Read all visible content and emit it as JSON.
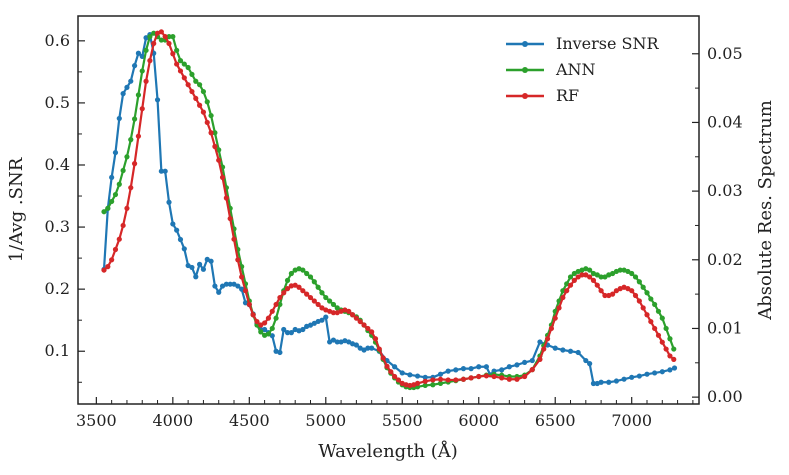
{
  "chart_data": {
    "type": "line",
    "title": "",
    "xlabel": "Wavelength (Å)",
    "ylabel_left": "1/Avg .SNR",
    "ylabel_right": "Absolute Res. Spectrum",
    "xlim": [
      3380,
      7440
    ],
    "ylim_left": [
      0.015,
      0.64
    ],
    "ylim_right": [
      -0.001,
      0.0555
    ],
    "x_ticks": [
      3500,
      4000,
      4500,
      5000,
      5500,
      6000,
      6500,
      7000
    ],
    "x_tick_labels": [
      "3500",
      "4000",
      "4500",
      "5000",
      "5500",
      "6000",
      "6500",
      "7000"
    ],
    "y_left_ticks": [
      0.1,
      0.2,
      0.3,
      0.4,
      0.5,
      0.6
    ],
    "y_left_tick_labels": [
      "0.1",
      "0.2",
      "0.3",
      "0.4",
      "0.5",
      "0.6"
    ],
    "y_right_ticks": [
      0.0,
      0.01,
      0.02,
      0.03,
      0.04,
      0.05
    ],
    "y_right_tick_labels": [
      "0.00",
      "0.01",
      "0.02",
      "0.03",
      "0.04",
      "0.05"
    ],
    "legend_position": "top-right",
    "series": [
      {
        "name": "Inverse SNR",
        "axis": "left",
        "color": "#1f77b4",
        "x": [
          3550,
          3575,
          3600,
          3625,
          3650,
          3675,
          3700,
          3725,
          3750,
          3775,
          3800,
          3825,
          3850,
          3875,
          3900,
          3925,
          3950,
          3975,
          4000,
          4025,
          4050,
          4075,
          4100,
          4125,
          4150,
          4175,
          4200,
          4225,
          4250,
          4275,
          4300,
          4325,
          4350,
          4375,
          4400,
          4425,
          4450,
          4475,
          4500,
          4525,
          4550,
          4575,
          4600,
          4625,
          4650,
          4675,
          4700,
          4725,
          4750,
          4775,
          4800,
          4825,
          4850,
          4875,
          4900,
          4925,
          4950,
          4975,
          5000,
          5025,
          5050,
          5075,
          5100,
          5125,
          5150,
          5175,
          5200,
          5225,
          5250,
          5275,
          5300,
          5350,
          5400,
          5450,
          5500,
          5550,
          5600,
          5650,
          5700,
          5750,
          5800,
          5850,
          5900,
          5950,
          6000,
          6050,
          6075,
          6100,
          6150,
          6200,
          6250,
          6300,
          6350,
          6400,
          6450,
          6500,
          6550,
          6600,
          6650,
          6700,
          6725,
          6750,
          6775,
          6800,
          6850,
          6900,
          6950,
          7000,
          7050,
          7100,
          7150,
          7200,
          7250,
          7280
        ],
        "values": [
          0.232,
          0.33,
          0.38,
          0.42,
          0.475,
          0.515,
          0.525,
          0.535,
          0.56,
          0.58,
          0.575,
          0.605,
          0.61,
          0.58,
          0.505,
          0.39,
          0.39,
          0.34,
          0.305,
          0.295,
          0.28,
          0.265,
          0.238,
          0.235,
          0.22,
          0.24,
          0.232,
          0.248,
          0.245,
          0.205,
          0.195,
          0.205,
          0.208,
          0.208,
          0.208,
          0.205,
          0.2,
          0.178,
          0.175,
          0.16,
          0.145,
          0.135,
          0.135,
          0.13,
          0.125,
          0.1,
          0.098,
          0.135,
          0.13,
          0.13,
          0.135,
          0.133,
          0.135,
          0.14,
          0.142,
          0.145,
          0.148,
          0.15,
          0.155,
          0.115,
          0.118,
          0.115,
          0.115,
          0.117,
          0.115,
          0.112,
          0.11,
          0.105,
          0.102,
          0.105,
          0.105,
          0.1,
          0.085,
          0.075,
          0.065,
          0.062,
          0.06,
          0.058,
          0.058,
          0.063,
          0.068,
          0.07,
          0.072,
          0.072,
          0.075,
          0.075,
          0.062,
          0.068,
          0.07,
          0.075,
          0.078,
          0.082,
          0.085,
          0.115,
          0.11,
          0.105,
          0.102,
          0.1,
          0.098,
          0.085,
          0.08,
          0.048,
          0.048,
          0.05,
          0.05,
          0.052,
          0.055,
          0.058,
          0.06,
          0.063,
          0.065,
          0.067,
          0.07,
          0.073
        ]
      },
      {
        "name": "ANN",
        "axis": "right",
        "color": "#2ca02c",
        "x": [
          3550,
          3575,
          3600,
          3625,
          3650,
          3675,
          3700,
          3725,
          3750,
          3775,
          3800,
          3825,
          3850,
          3875,
          3900,
          3925,
          3950,
          3975,
          4000,
          4025,
          4050,
          4075,
          4100,
          4125,
          4150,
          4175,
          4200,
          4225,
          4250,
          4275,
          4300,
          4325,
          4350,
          4375,
          4400,
          4425,
          4450,
          4475,
          4500,
          4525,
          4550,
          4575,
          4600,
          4625,
          4650,
          4675,
          4700,
          4725,
          4750,
          4775,
          4800,
          4825,
          4850,
          4875,
          4900,
          4925,
          4950,
          4975,
          5000,
          5025,
          5050,
          5075,
          5100,
          5125,
          5150,
          5175,
          5200,
          5225,
          5250,
          5275,
          5300,
          5325,
          5350,
          5375,
          5400,
          5425,
          5450,
          5475,
          5500,
          5525,
          5550,
          5575,
          5600,
          5650,
          5700,
          5750,
          5800,
          5850,
          5900,
          5950,
          6000,
          6050,
          6100,
          6150,
          6200,
          6250,
          6300,
          6350,
          6400,
          6425,
          6450,
          6475,
          6500,
          6525,
          6550,
          6575,
          6600,
          6625,
          6650,
          6675,
          6700,
          6725,
          6750,
          6775,
          6800,
          6825,
          6850,
          6875,
          6900,
          6925,
          6950,
          6975,
          7000,
          7025,
          7050,
          7075,
          7100,
          7125,
          7150,
          7175,
          7200,
          7225,
          7250,
          7275
        ],
        "values": [
          0.027,
          0.0275,
          0.0285,
          0.0295,
          0.031,
          0.033,
          0.035,
          0.0375,
          0.0405,
          0.044,
          0.0475,
          0.0505,
          0.0525,
          0.053,
          0.0525,
          0.052,
          0.052,
          0.0525,
          0.0525,
          0.0505,
          0.049,
          0.0485,
          0.048,
          0.047,
          0.046,
          0.0455,
          0.0445,
          0.043,
          0.041,
          0.0385,
          0.036,
          0.0335,
          0.0305,
          0.0275,
          0.0245,
          0.0215,
          0.019,
          0.0165,
          0.014,
          0.012,
          0.0105,
          0.0095,
          0.009,
          0.0092,
          0.01,
          0.0115,
          0.0135,
          0.0155,
          0.017,
          0.018,
          0.0185,
          0.0187,
          0.0185,
          0.018,
          0.0175,
          0.0168,
          0.016,
          0.0152,
          0.0145,
          0.014,
          0.0135,
          0.013,
          0.0127,
          0.0125,
          0.0123,
          0.012,
          0.0117,
          0.0112,
          0.0105,
          0.0097,
          0.009,
          0.008,
          0.0068,
          0.0055,
          0.0043,
          0.0035,
          0.0028,
          0.0022,
          0.0018,
          0.0015,
          0.0014,
          0.0014,
          0.0015,
          0.0017,
          0.0018,
          0.002,
          0.0022,
          0.0024,
          0.0026,
          0.0028,
          0.003,
          0.0032,
          0.0033,
          0.0032,
          0.003,
          0.003,
          0.0032,
          0.004,
          0.006,
          0.0075,
          0.009,
          0.0105,
          0.0125,
          0.014,
          0.0155,
          0.0165,
          0.0175,
          0.018,
          0.0183,
          0.0185,
          0.0187,
          0.0185,
          0.018,
          0.0178,
          0.0175,
          0.0175,
          0.0178,
          0.018,
          0.0183,
          0.0185,
          0.0185,
          0.0183,
          0.018,
          0.0175,
          0.0168,
          0.016,
          0.0152,
          0.0143,
          0.0135,
          0.0125,
          0.0115,
          0.01,
          0.0085,
          0.007
        ]
      },
      {
        "name": "RF",
        "axis": "right",
        "color": "#d62728",
        "x": [
          3550,
          3575,
          3600,
          3625,
          3650,
          3675,
          3700,
          3725,
          3750,
          3775,
          3800,
          3825,
          3850,
          3875,
          3900,
          3925,
          3950,
          3975,
          4000,
          4025,
          4050,
          4075,
          4100,
          4125,
          4150,
          4175,
          4200,
          4225,
          4250,
          4275,
          4300,
          4325,
          4350,
          4375,
          4400,
          4425,
          4450,
          4475,
          4500,
          4525,
          4550,
          4575,
          4600,
          4625,
          4650,
          4675,
          4700,
          4725,
          4750,
          4775,
          4800,
          4825,
          4850,
          4875,
          4900,
          4925,
          4950,
          4975,
          5000,
          5025,
          5050,
          5075,
          5100,
          5125,
          5150,
          5175,
          5200,
          5225,
          5250,
          5275,
          5300,
          5325,
          5350,
          5375,
          5400,
          5425,
          5450,
          5475,
          5500,
          5525,
          5550,
          5575,
          5600,
          5650,
          5700,
          5750,
          5800,
          5850,
          5900,
          5950,
          6000,
          6050,
          6100,
          6150,
          6200,
          6250,
          6300,
          6350,
          6400,
          6425,
          6450,
          6475,
          6500,
          6525,
          6550,
          6575,
          6600,
          6625,
          6650,
          6675,
          6700,
          6725,
          6750,
          6775,
          6800,
          6825,
          6850,
          6875,
          6900,
          6925,
          6950,
          6975,
          7000,
          7025,
          7050,
          7075,
          7100,
          7125,
          7150,
          7175,
          7200,
          7225,
          7250,
          7275
        ],
        "values": [
          0.0185,
          0.019,
          0.02,
          0.0215,
          0.023,
          0.025,
          0.0275,
          0.0305,
          0.034,
          0.038,
          0.042,
          0.046,
          0.049,
          0.0515,
          0.053,
          0.0532,
          0.0525,
          0.0515,
          0.05,
          0.0485,
          0.0475,
          0.0465,
          0.0455,
          0.0445,
          0.0435,
          0.0425,
          0.0415,
          0.04,
          0.0385,
          0.0365,
          0.0345,
          0.032,
          0.029,
          0.026,
          0.023,
          0.02,
          0.0175,
          0.0155,
          0.0135,
          0.012,
          0.011,
          0.0105,
          0.0108,
          0.0115,
          0.0125,
          0.0135,
          0.0145,
          0.0152,
          0.0158,
          0.0162,
          0.0163,
          0.016,
          0.0155,
          0.015,
          0.0145,
          0.014,
          0.0135,
          0.013,
          0.0127,
          0.0125,
          0.0123,
          0.0123,
          0.0125,
          0.0127,
          0.0125,
          0.012,
          0.0115,
          0.011,
          0.0105,
          0.01,
          0.0095,
          0.0085,
          0.007,
          0.0057,
          0.0045,
          0.0037,
          0.003,
          0.0025,
          0.002,
          0.0018,
          0.0017,
          0.0018,
          0.002,
          0.0023,
          0.0025,
          0.0026,
          0.0025,
          0.0025,
          0.0026,
          0.0028,
          0.003,
          0.0031,
          0.003,
          0.0028,
          0.0026,
          0.0026,
          0.003,
          0.004,
          0.0055,
          0.007,
          0.0085,
          0.01,
          0.0115,
          0.013,
          0.0145,
          0.0155,
          0.0163,
          0.017,
          0.0175,
          0.0178,
          0.0178,
          0.0175,
          0.017,
          0.0163,
          0.0155,
          0.0148,
          0.0148,
          0.015,
          0.0155,
          0.0158,
          0.016,
          0.0158,
          0.0155,
          0.0148,
          0.014,
          0.013,
          0.012,
          0.011,
          0.01,
          0.009,
          0.008,
          0.007,
          0.006,
          0.0055
        ]
      }
    ]
  }
}
